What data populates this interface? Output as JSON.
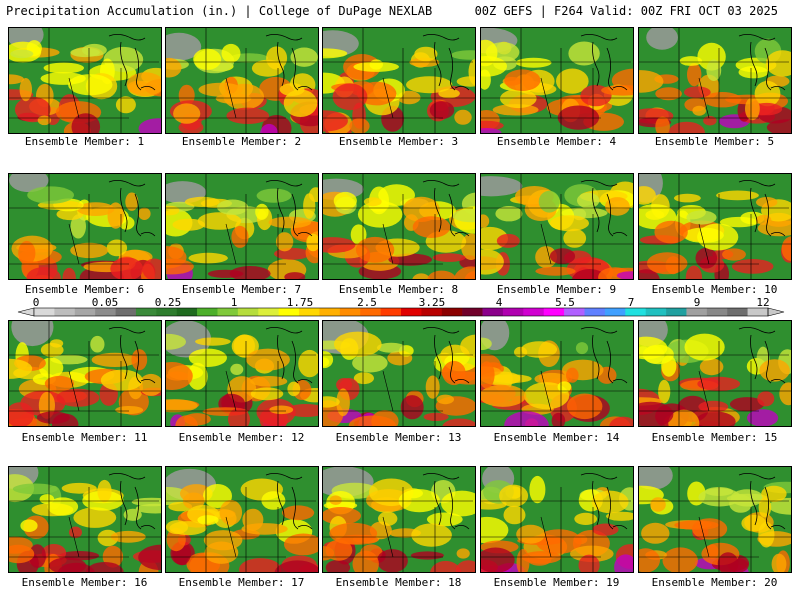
{
  "header": {
    "title_left": "Precipitation Accumulation (in.) | College of DuPage NEXLAB",
    "title_right": "00Z GEFS | F264 Valid: 00Z FRI OCT 03 2025"
  },
  "colorbar": {
    "tick_labels": [
      "0",
      "0.05",
      "0.25",
      "1",
      "1.75",
      "2.5",
      "3.25",
      "4",
      "5.5",
      "7",
      "9",
      "12"
    ],
    "colors": [
      "#d9d9d9",
      "#bdbdbd",
      "#a6a6a6",
      "#8c8c8c",
      "#6e6e6e",
      "#3a8a3a",
      "#2e7d2e",
      "#1f6b1f",
      "#4caf2a",
      "#7fc93a",
      "#b5dd3c",
      "#dcef3a",
      "#ffff00",
      "#ffd700",
      "#ffb000",
      "#ff8c00",
      "#ff6a00",
      "#ff3c00",
      "#e00000",
      "#b80000",
      "#8b0000",
      "#70002a",
      "#8b008b",
      "#b000b0",
      "#d000d0",
      "#ff00ff",
      "#b060ff",
      "#6080ff",
      "#40a0ff",
      "#20e0e0",
      "#20c0c0",
      "#20a0a0",
      "#a0a0a0",
      "#888888",
      "#6e6e6e",
      "#c8c8c8"
    ]
  },
  "members": [
    {
      "label": "Ensemble Member: 1"
    },
    {
      "label": "Ensemble Member: 2"
    },
    {
      "label": "Ensemble Member: 3"
    },
    {
      "label": "Ensemble Member: 4"
    },
    {
      "label": "Ensemble Member: 5"
    },
    {
      "label": "Ensemble Member: 6"
    },
    {
      "label": "Ensemble Member: 7"
    },
    {
      "label": "Ensemble Member: 8"
    },
    {
      "label": "Ensemble Member: 9"
    },
    {
      "label": "Ensemble Member: 10"
    },
    {
      "label": "Ensemble Member: 11"
    },
    {
      "label": "Ensemble Member: 12"
    },
    {
      "label": "Ensemble Member: 13"
    },
    {
      "label": "Ensemble Member: 14"
    },
    {
      "label": "Ensemble Member: 15"
    },
    {
      "label": "Ensemble Member: 16"
    },
    {
      "label": "Ensemble Member: 17"
    },
    {
      "label": "Ensemble Member: 18"
    },
    {
      "label": "Ensemble Member: 19"
    },
    {
      "label": "Ensemble Member: 20"
    }
  ]
}
